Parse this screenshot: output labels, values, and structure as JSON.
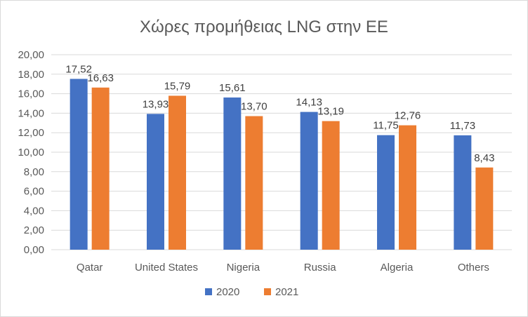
{
  "chart_data": {
    "type": "bar",
    "title": "Χώρες προμήθειας LNG  στην ΕΕ",
    "categories": [
      "Qatar",
      "United States",
      "Nigeria",
      "Russia",
      "Algeria",
      "Others"
    ],
    "series": [
      {
        "name": "2020",
        "color": "#4472c4",
        "values": [
          17.52,
          13.93,
          15.61,
          14.13,
          11.75,
          11.73
        ],
        "labels": [
          "17,52",
          "13,93",
          "15,61",
          "14,13",
          "11,75",
          "11,73"
        ]
      },
      {
        "name": "2021",
        "color": "#ed7d31",
        "values": [
          16.63,
          15.79,
          13.7,
          13.19,
          12.76,
          8.43
        ],
        "labels": [
          "16,63",
          "15,79",
          "13,70",
          "13,19",
          "12,76",
          "8,43"
        ]
      }
    ],
    "ylim": [
      0,
      20
    ],
    "yticks": [
      "0,00",
      "2,00",
      "4,00",
      "6,00",
      "8,00",
      "10,00",
      "12,00",
      "14,00",
      "16,00",
      "18,00",
      "20,00"
    ],
    "grid": true,
    "legend_position": "bottom",
    "xlabel": "",
    "ylabel": ""
  }
}
